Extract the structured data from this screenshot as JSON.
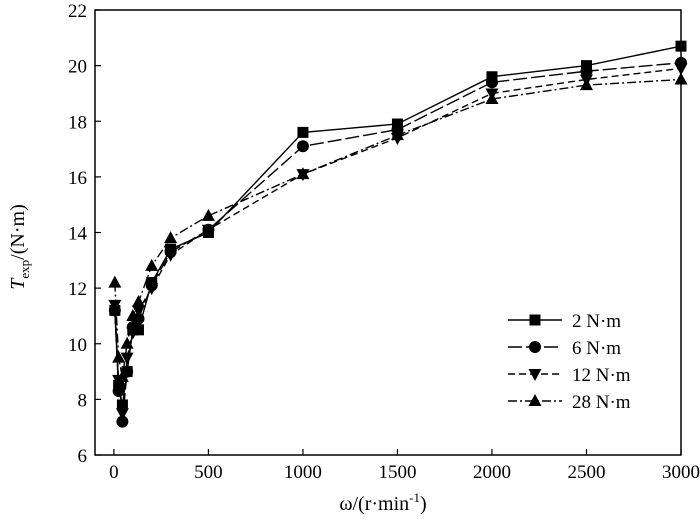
{
  "chart_data": {
    "type": "line",
    "title": "",
    "xlabel": {
      "main": "ω/(r·min",
      "sup": "-1",
      "close": ")"
    },
    "ylabel": {
      "main": "T",
      "sub": "exp",
      "rest": "/(N·m)"
    },
    "xlim": [
      -100,
      3000
    ],
    "ylim": [
      6,
      22
    ],
    "xticks": [
      0,
      500,
      1000,
      1500,
      2000,
      2500,
      3000
    ],
    "yticks": [
      6,
      8,
      10,
      12,
      14,
      16,
      18,
      20,
      22
    ],
    "xtick_labels": [
      "0",
      "500",
      "1000",
      "1500",
      "2000",
      "2500",
      "3000"
    ],
    "ytick_labels": [
      "6",
      "8",
      "10",
      "12",
      "14",
      "16",
      "18",
      "20",
      "22"
    ],
    "grid": false,
    "legend_position": "lower-right",
    "series": [
      {
        "name": "2 N·m",
        "marker": "square",
        "dash": "solid",
        "x": [
          5,
          25,
          45,
          70,
          100,
          130,
          200,
          300,
          500,
          1000,
          1500,
          2000,
          2500,
          3000
        ],
        "y": [
          11.2,
          8.5,
          7.8,
          9.0,
          10.5,
          10.5,
          12.2,
          13.4,
          14.0,
          17.6,
          17.9,
          19.6,
          20.0,
          20.7
        ]
      },
      {
        "name": "6 N·m",
        "marker": "circle",
        "dash": "long-dash",
        "x": [
          5,
          25,
          45,
          70,
          100,
          130,
          200,
          300,
          500,
          1000,
          1500,
          2000,
          2500,
          3000
        ],
        "y": [
          11.2,
          8.3,
          7.2,
          9.0,
          10.6,
          10.9,
          12.1,
          13.3,
          14.1,
          17.1,
          17.7,
          19.4,
          19.8,
          20.1
        ]
      },
      {
        "name": "12 N·m",
        "marker": "triangle-down",
        "dash": "dashed",
        "x": [
          5,
          25,
          45,
          70,
          100,
          130,
          200,
          300,
          500,
          1000,
          1500,
          2000,
          2500,
          3000
        ],
        "y": [
          11.4,
          8.7,
          7.5,
          9.5,
          10.4,
          11.2,
          12.0,
          13.2,
          14.1,
          16.1,
          17.4,
          19.0,
          19.5,
          19.9
        ]
      },
      {
        "name": "28 N·m",
        "marker": "triangle-up",
        "dash": "dash-dot",
        "x": [
          5,
          25,
          45,
          70,
          100,
          130,
          200,
          300,
          500,
          1000,
          1500,
          2000,
          2500,
          3000
        ],
        "y": [
          12.2,
          9.5,
          8.8,
          10.0,
          11.0,
          11.5,
          12.8,
          13.8,
          14.6,
          16.1,
          17.5,
          18.8,
          19.3,
          19.5
        ]
      }
    ]
  }
}
